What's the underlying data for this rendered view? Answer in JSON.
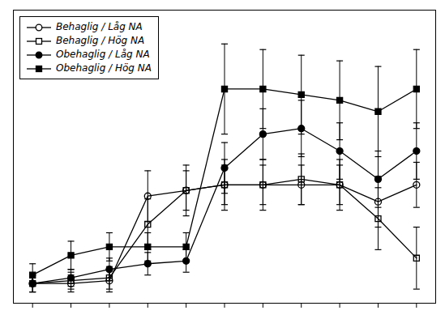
{
  "chart_data": {
    "type": "line",
    "x": [
      1,
      2,
      3,
      4,
      5,
      6,
      7,
      8,
      9,
      10,
      11
    ],
    "xlim": [
      0.5,
      11.5
    ],
    "xticks": [
      1,
      2,
      3,
      4,
      5,
      6,
      7,
      8,
      9,
      10,
      11
    ],
    "ylim": [
      -0.02,
      1.02
    ],
    "yticks": [],
    "tick_labels": false,
    "legend": "upper left",
    "series": [
      {
        "name": "Behaglig / Låg NA",
        "color": "#000000",
        "marker": "circle_open",
        "line_style": "solid",
        "values": [
          0.05,
          0.05,
          0.06,
          0.36,
          0.38,
          0.4,
          0.4,
          0.4,
          0.4,
          0.34,
          0.4
        ],
        "errors": [
          0.03,
          0.03,
          0.04,
          0.09,
          0.07,
          0.07,
          0.07,
          0.07,
          0.07,
          0.09,
          0.08
        ]
      },
      {
        "name": "Behaglig / Hög NA",
        "color": "#000000",
        "marker": "square_open",
        "line_style": "solid",
        "values": [
          0.05,
          0.06,
          0.07,
          0.26,
          0.38,
          0.4,
          0.4,
          0.42,
          0.4,
          0.28,
          0.14
        ],
        "errors": [
          0.03,
          0.03,
          0.04,
          0.09,
          0.09,
          0.09,
          0.09,
          0.09,
          0.09,
          0.11,
          0.11
        ]
      },
      {
        "name": "Obehaglig / Låg NA",
        "color": "#000000",
        "marker": "circle",
        "line_style": "solid",
        "values": [
          0.05,
          0.07,
          0.1,
          0.12,
          0.13,
          0.46,
          0.58,
          0.6,
          0.52,
          0.42,
          0.52
        ],
        "errors": [
          0.03,
          0.03,
          0.04,
          0.04,
          0.04,
          0.09,
          0.09,
          0.1,
          0.1,
          0.1,
          0.1
        ]
      },
      {
        "name": "Obehaglig / Hög NA",
        "color": "#000000",
        "marker": "square",
        "line_style": "solid",
        "values": [
          0.08,
          0.15,
          0.18,
          0.18,
          0.18,
          0.74,
          0.74,
          0.72,
          0.7,
          0.66,
          0.74
        ],
        "errors": [
          0.04,
          0.05,
          0.05,
          0.05,
          0.05,
          0.16,
          0.14,
          0.14,
          0.14,
          0.16,
          0.14
        ]
      }
    ]
  }
}
